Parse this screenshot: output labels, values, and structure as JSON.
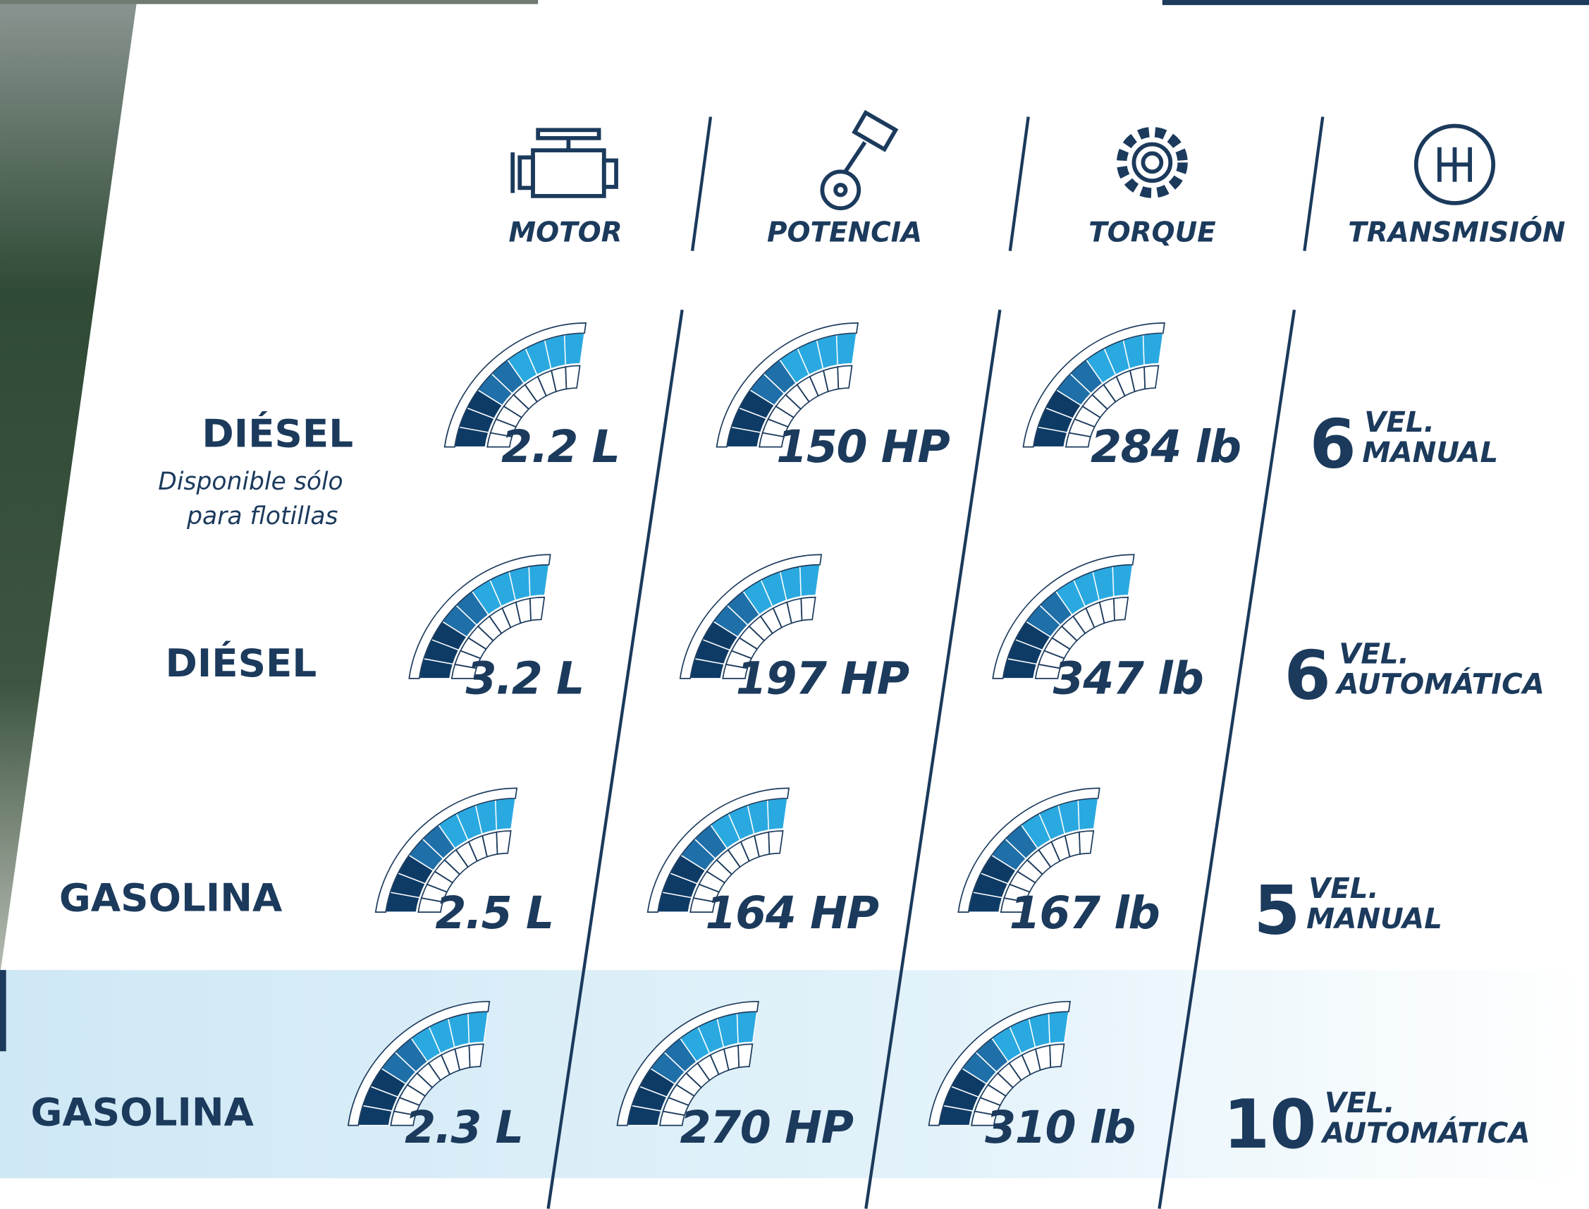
{
  "headers": [
    "MOTOR",
    "POTENCIA",
    "TORQUE",
    "TRANSMISIÓN"
  ],
  "rows": [
    {
      "fuel": "DIÉSEL",
      "note": [
        "Disponible sólo",
        "para flotillas"
      ],
      "motor": "2.2 L",
      "potencia": "150 HP",
      "torque": "284 lb",
      "transmision": {
        "speeds": 6,
        "unit": "VEL.",
        "type": "MANUAL"
      }
    },
    {
      "fuel": "DIÉSEL",
      "motor": "3.2 L",
      "potencia": "197 HP",
      "torque": "347 lb",
      "transmision": {
        "speeds": 6,
        "unit": "VEL.",
        "type": "AUTOMÁTICA"
      }
    },
    {
      "fuel": "GASOLINA",
      "motor": "2.5 L",
      "potencia": "164 HP",
      "torque": "167 lb",
      "transmision": {
        "speeds": 5,
        "unit": "VEL.",
        "type": "MANUAL"
      }
    },
    {
      "fuel": "GASOLINA",
      "motor": "2.3 L",
      "potencia": "270 HP",
      "torque": "310 lb",
      "transmision": {
        "speeds": 10,
        "unit": "VEL.",
        "type": "AUTOMÁTICA"
      }
    }
  ]
}
